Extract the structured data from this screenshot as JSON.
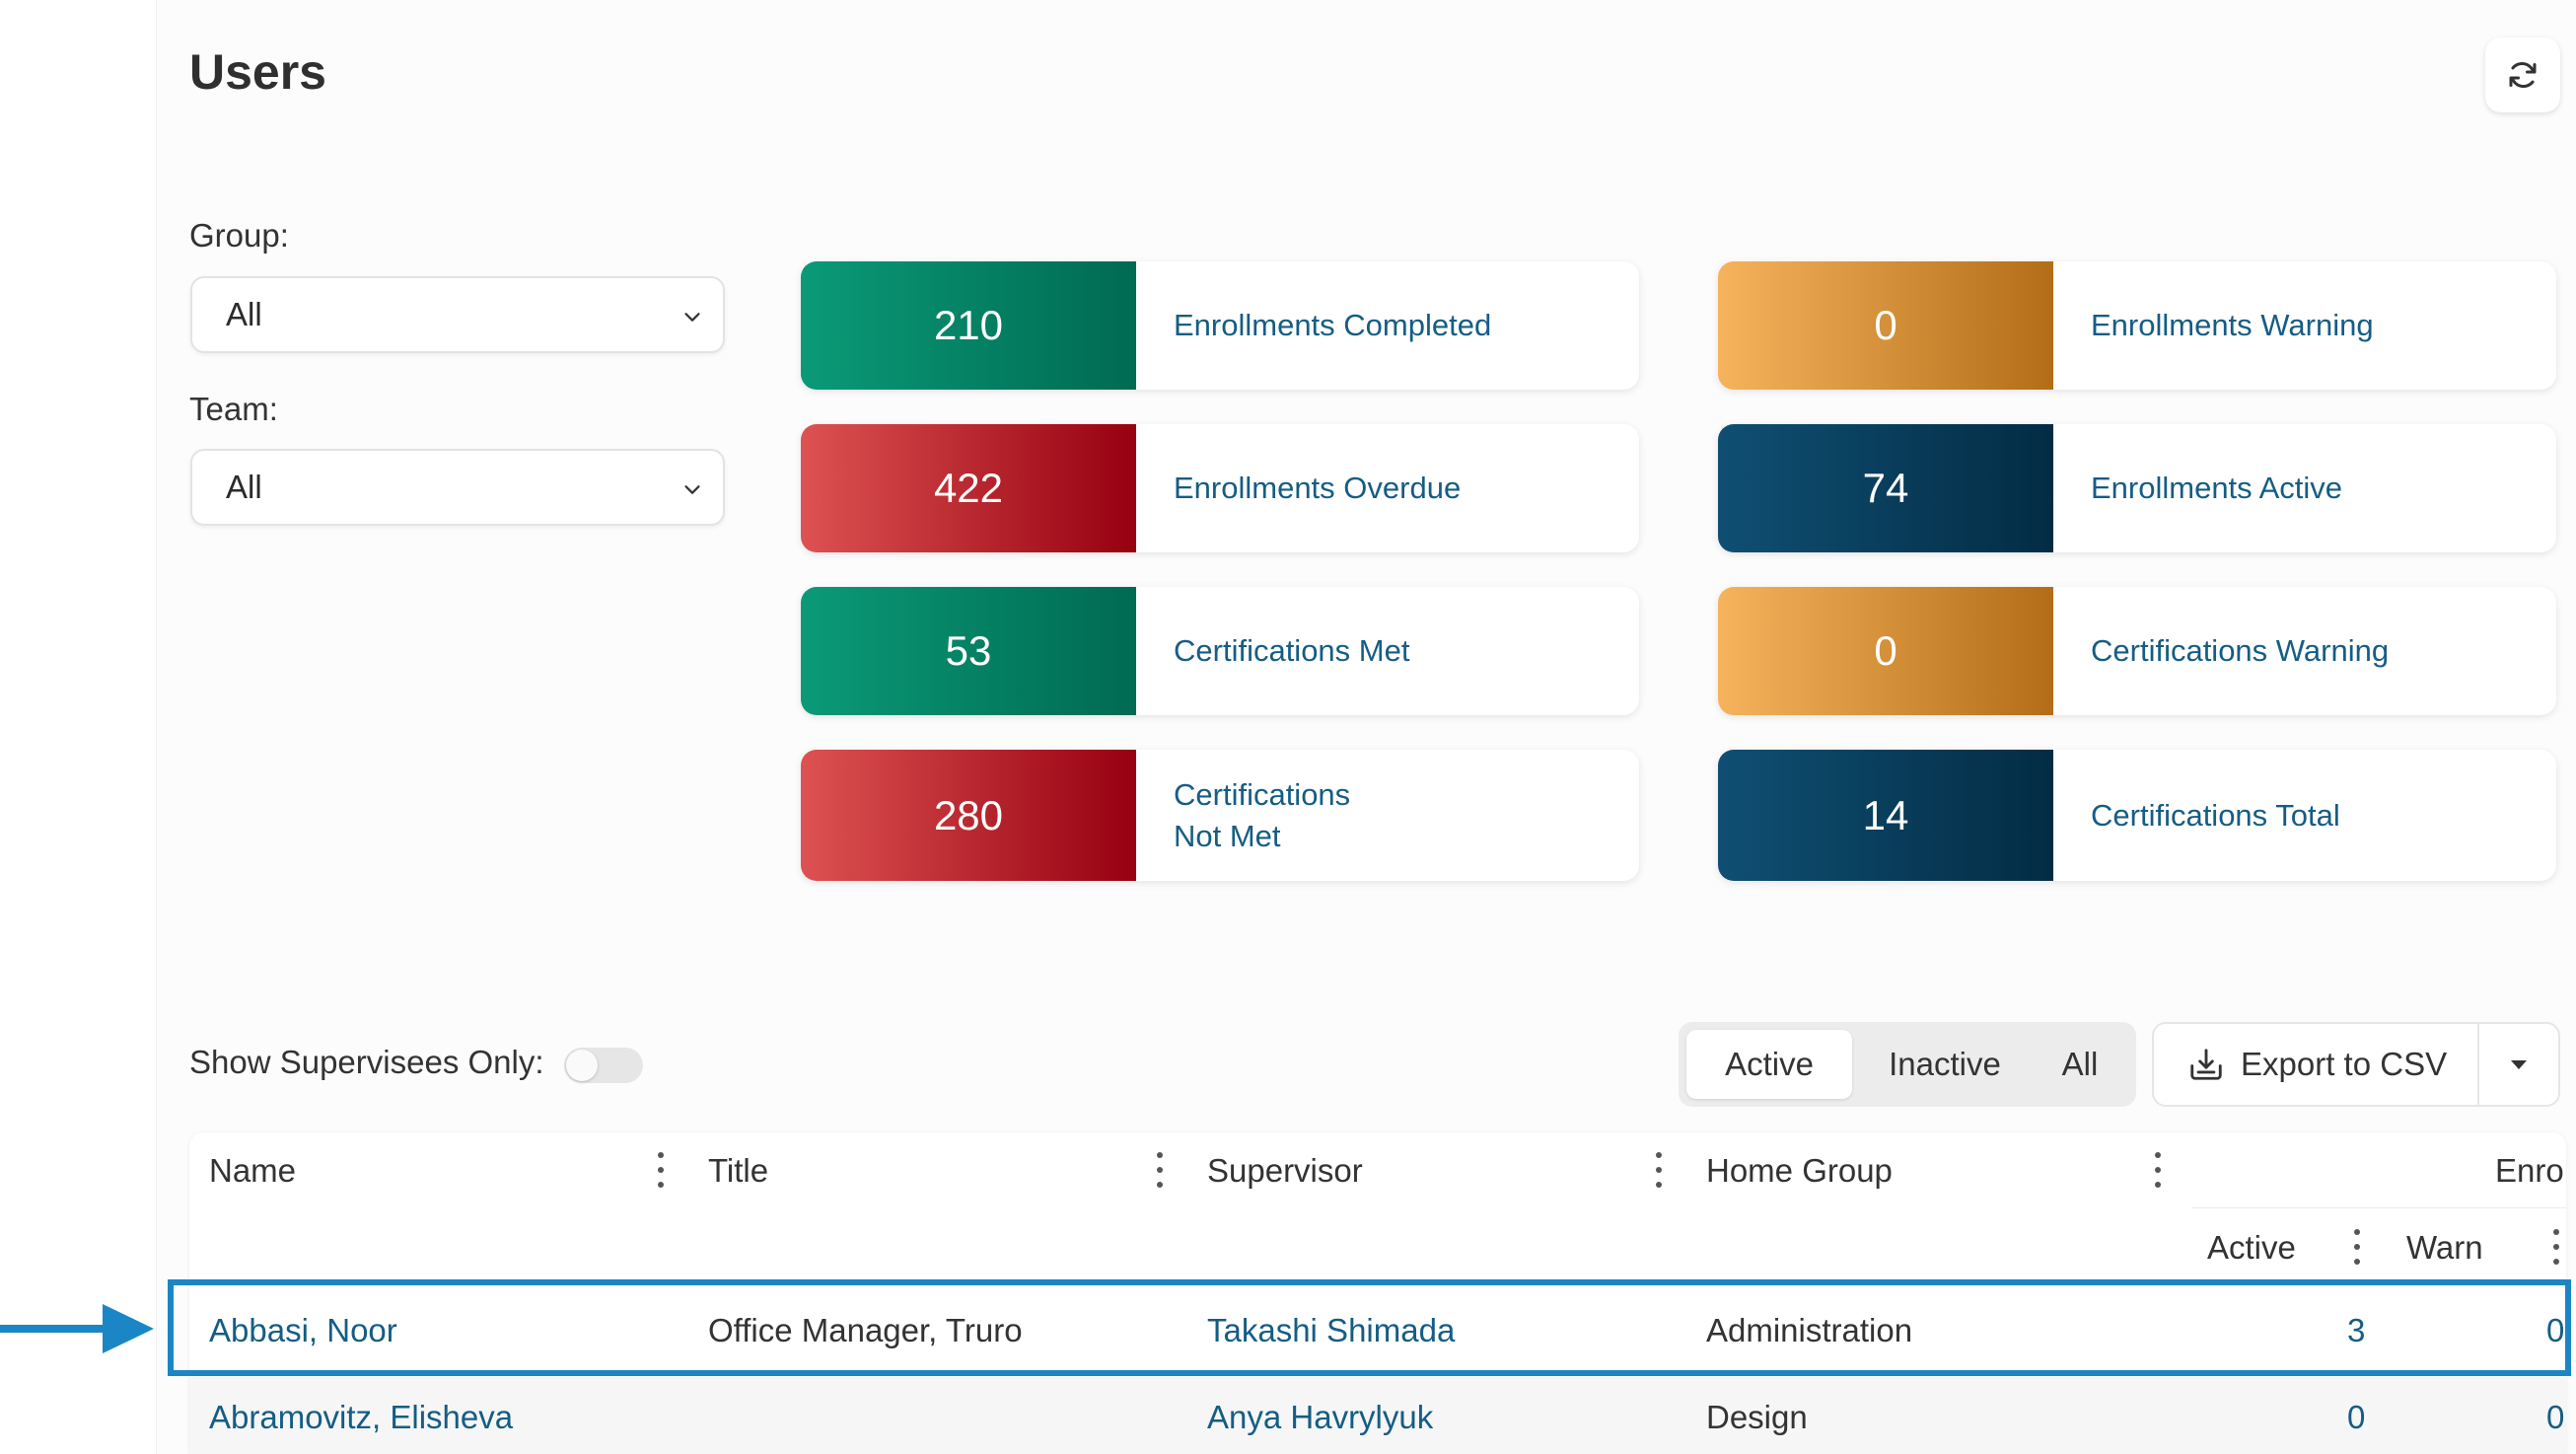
{
  "page": {
    "title": "Users"
  },
  "filters": {
    "group": {
      "label": "Group:",
      "value": "All"
    },
    "team": {
      "label": "Team:",
      "value": "All"
    }
  },
  "stats": [
    {
      "value": "210",
      "label": "Enrollments Completed",
      "color": "#0a9a77"
    },
    {
      "value": "0",
      "label": "Enrollments Warning",
      "color": "#f6b35c"
    },
    {
      "value": "422",
      "label": "Enrollments Overdue",
      "color": "#dd5252"
    },
    {
      "value": "74",
      "label": "Enrollments Active",
      "color": "#0f4f73"
    },
    {
      "value": "53",
      "label": "Certifications Met",
      "color": "#0a9a77"
    },
    {
      "value": "0",
      "label": "Certifications Warning",
      "color": "#f6b35c"
    },
    {
      "value": "280",
      "label": "Certifications\nNot Met",
      "color": "#dd5252"
    },
    {
      "value": "14",
      "label": "Certifications Total",
      "color": "#0f4f73"
    }
  ],
  "supervisees": {
    "label": "Show Supervisees Only:",
    "enabled": false
  },
  "status_filter": {
    "options": [
      "Active",
      "Inactive",
      "All"
    ],
    "selected": "Active"
  },
  "export": {
    "label": "Export to CSV"
  },
  "table": {
    "columns": [
      "Name",
      "Title",
      "Supervisor",
      "Home Group"
    ],
    "group_header": "Enro",
    "sub_columns": [
      "Active",
      "Warn"
    ],
    "rows": [
      {
        "name": "Abbasi, Noor",
        "title": "Office Manager, Truro",
        "supervisor": "Takashi Shimada",
        "home_group": "Administration",
        "active": "3",
        "warn": "0"
      },
      {
        "name": "Abramovitz, Elisheva",
        "title": "",
        "supervisor": "Anya Havrylyuk",
        "home_group": "Design",
        "active": "0",
        "warn": "0"
      }
    ]
  },
  "icons": {
    "refresh": "refresh-icon",
    "chevron": "chevron-down-icon",
    "export": "export-icon",
    "caret": "caret-down-icon",
    "kebab": "kebab-icon",
    "arrow": "arrow-right-icon"
  },
  "colors": {
    "accent": "#155d84",
    "highlight": "#1b86c6"
  }
}
